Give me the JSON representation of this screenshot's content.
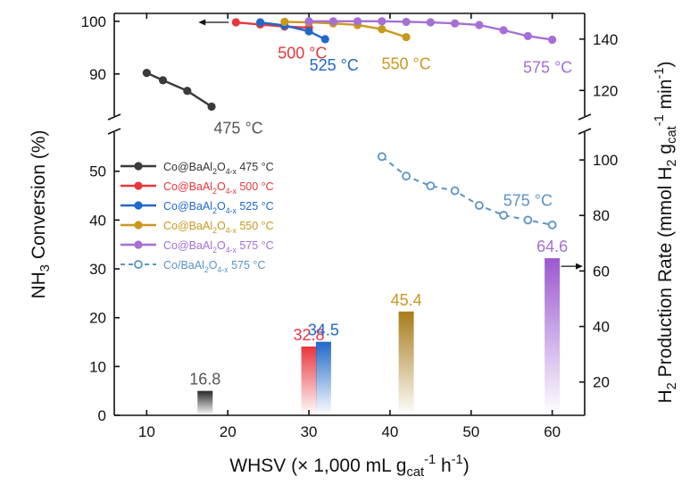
{
  "chart_data": {
    "type": "line+bar",
    "xlabel": {
      "main": "WHSV (× 1,000 mL g",
      "sub": "cat",
      "sup": "-1",
      "tail": " h",
      "sup2": "-1",
      "close": ")"
    },
    "ylabel_left": {
      "pre": "NH",
      "sub": "3",
      "post": " Conversion (%)"
    },
    "ylabel_right": {
      "pre": "H",
      "sub1": "2",
      "mid": " Production Rate (mmol H",
      "sub2": "2",
      "mid2": " g",
      "sub3": "cat",
      "sup": "-1",
      "tail": " min",
      "sup2": "-1",
      "close": ")"
    },
    "x_range": [
      6,
      64
    ],
    "x_ticks": [
      "10",
      "20",
      "30",
      "40",
      "50",
      "60"
    ],
    "left_axis": {
      "lower_range": [
        0,
        58
      ],
      "lower_ticks": [
        "0",
        "10",
        "20",
        "30",
        "40",
        "50"
      ],
      "upper_range": [
        82,
        101.5
      ],
      "upper_ticks": [
        "90",
        "100"
      ]
    },
    "right_axis": {
      "lower_range": [
        8,
        110
      ],
      "lower_ticks": [
        "20",
        "40",
        "60",
        "80",
        "100"
      ],
      "upper_range": [
        110,
        150
      ],
      "upper_ticks": [
        "120",
        "140"
      ]
    },
    "conversion_series": [
      {
        "name": "Co@BaAl2O4-x 475 °C",
        "legend_pre": "Co@BaAl",
        "legend_s1": "2",
        "legend_mid": "O",
        "legend_s2": "4-x",
        "legend_post": " 475 °C",
        "color": "#3a3a3a",
        "label": "475 °C",
        "x": [
          10,
          12,
          15,
          18
        ],
        "y": [
          90.2,
          88.8,
          86.8,
          83.8
        ]
      },
      {
        "name": "Co@BaAl2O4-x 500 °C",
        "legend_pre": "Co@BaAl",
        "legend_s1": "2",
        "legend_mid": "O",
        "legend_s2": "4-x",
        "legend_post": " 500 °C",
        "color": "#e8363d",
        "label": "500 °C",
        "x": [
          21,
          24,
          27,
          30
        ],
        "y": [
          99.8,
          99.4,
          99.0,
          98.8
        ]
      },
      {
        "name": "Co@BaAl2O4-x 525 °C",
        "legend_pre": "Co@BaAl",
        "legend_s1": "2",
        "legend_mid": "O",
        "legend_s2": "4-x",
        "legend_post": " 525 °C",
        "color": "#2068c9",
        "label": "525 °C",
        "x": [
          24,
          27,
          30,
          32
        ],
        "y": [
          99.8,
          99.2,
          98.1,
          96.6
        ]
      },
      {
        "name": "Co@BaAl2O4-x 550 °C",
        "legend_pre": "Co@BaAl",
        "legend_s1": "2",
        "legend_mid": "O",
        "legend_s2": "4-x",
        "legend_post": " 550 °C",
        "color": "#c9981f",
        "label": "550 °C",
        "x": [
          27,
          30,
          33,
          36,
          39,
          42
        ],
        "y": [
          99.9,
          99.8,
          99.6,
          99.3,
          98.5,
          97.0
        ]
      },
      {
        "name": "Co@BaAl2O4-x 575 °C",
        "legend_pre": "Co@BaAl",
        "legend_s1": "2",
        "legend_mid": "O",
        "legend_s2": "4-x",
        "legend_post": " 575 °C",
        "color": "#a56fd6",
        "label": "575 °C",
        "x": [
          30,
          33,
          36,
          39,
          42,
          45,
          48,
          51,
          54,
          57,
          60
        ],
        "y": [
          100,
          100,
          100,
          100,
          99.9,
          99.8,
          99.6,
          99.3,
          98.3,
          97.2,
          96.5
        ]
      }
    ],
    "reference_series": {
      "name": "Co/BaAl2O4-x 575 °C",
      "legend_pre": "Co/BaAl",
      "legend_s1": "2",
      "legend_mid": "O",
      "legend_s2": "4-x",
      "legend_post": " 575 °C",
      "color": "#5b93c4",
      "label": "575 °C",
      "x": [
        39,
        42,
        45,
        48,
        51,
        54,
        57,
        60
      ],
      "y": [
        53,
        49,
        47,
        46,
        43,
        41,
        40,
        39
      ]
    },
    "bars": [
      {
        "x": 17.2,
        "value": 16.8,
        "label": "16.8",
        "color": "#2a2a2a",
        "label_color": "#555555"
      },
      {
        "x": 30,
        "value": 32.8,
        "label": "32.8",
        "color": "#e8363d",
        "label_color": "#e8363d"
      },
      {
        "x": 31.8,
        "value": 34.5,
        "label": "34.5",
        "color": "#2068c9",
        "label_color": "#2068c9"
      },
      {
        "x": 42,
        "value": 45.4,
        "label": "45.4",
        "color": "#a87b1a",
        "label_color": "#c9981f"
      },
      {
        "x": 60,
        "value": 64.6,
        "label": "64.6",
        "color": "#9b59d0",
        "label_color": "#a56fd6"
      }
    ],
    "grid": false,
    "legend_position": "left-middle"
  }
}
